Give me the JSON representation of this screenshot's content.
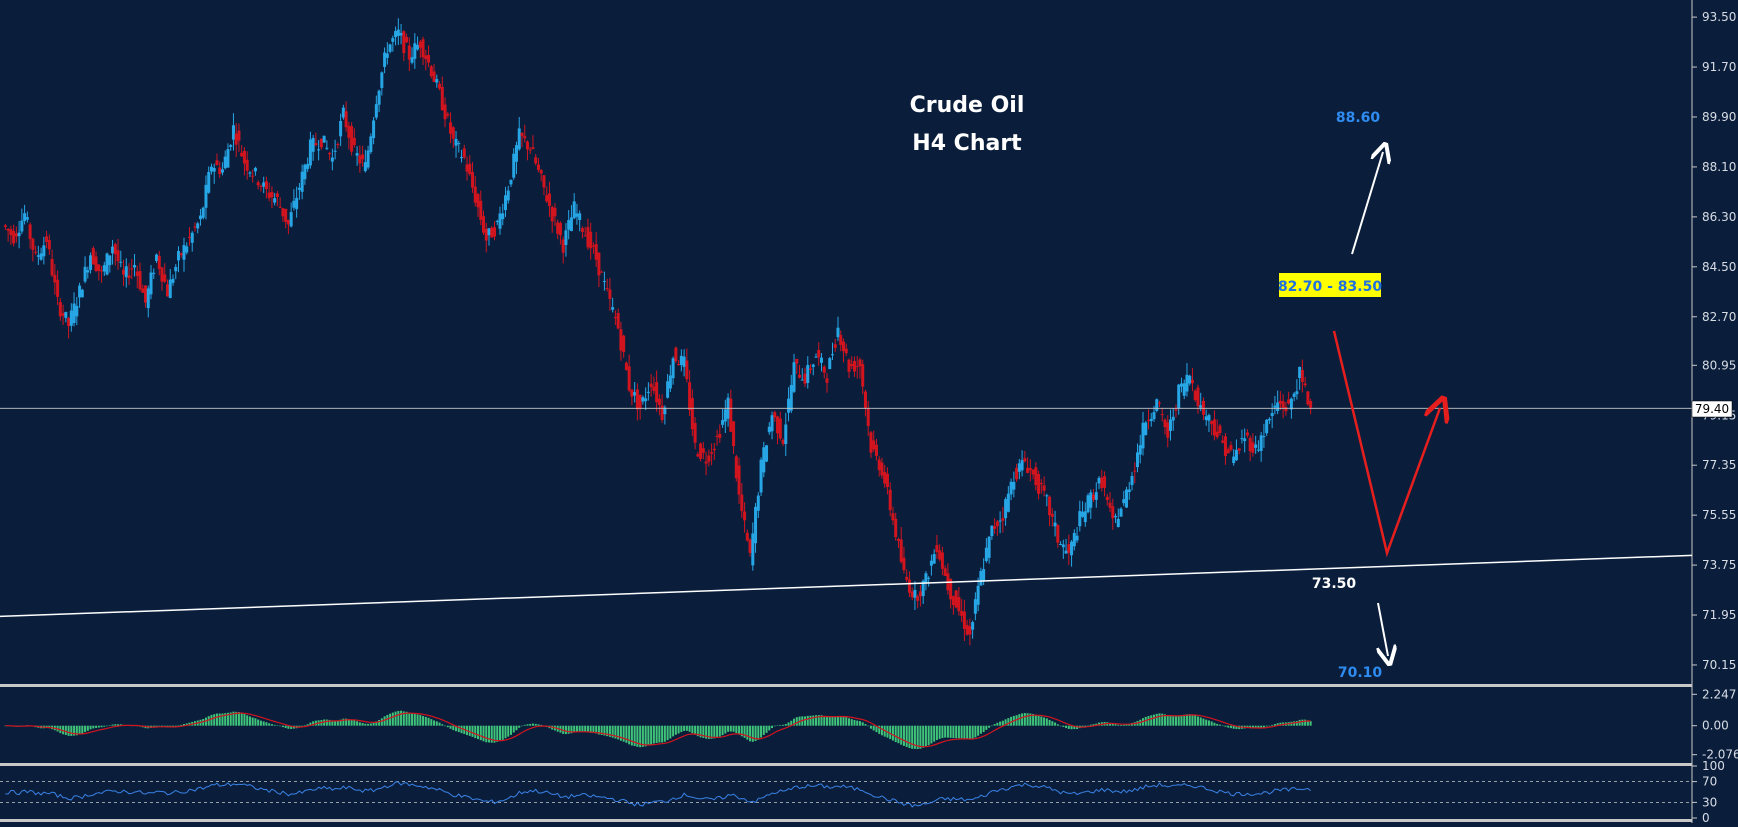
{
  "chart_data": [
    {
      "type": "candlestick",
      "title": "Crude Oil",
      "subtitle": "H4 Chart",
      "ylim": [
        69.5,
        93.9
      ],
      "y_ticks": [
        "93.50",
        "91.70",
        "89.90",
        "88.10",
        "86.30",
        "84.50",
        "82.70",
        "80.95",
        "79.15",
        "77.35",
        "75.55",
        "73.75",
        "71.95",
        "70.15"
      ],
      "current_price": "79.40",
      "price_path": [
        86.0,
        85.6,
        86.4,
        84.8,
        85.5,
        83.2,
        82.4,
        83.6,
        85.0,
        84.2,
        85.3,
        84.1,
        84.6,
        83.2,
        84.9,
        83.6,
        84.8,
        85.5,
        86.2,
        88.2,
        88.0,
        89.5,
        88.3,
        87.8,
        87.2,
        86.9,
        86.0,
        87.4,
        88.8,
        89.1,
        88.4,
        90.0,
        88.6,
        88.1,
        90.6,
        92.4,
        92.9,
        92.1,
        92.6,
        91.6,
        90.4,
        89.0,
        88.4,
        87.0,
        85.5,
        86.0,
        87.4,
        89.2,
        88.8,
        87.6,
        86.4,
        85.3,
        86.6,
        85.7,
        84.8,
        83.5,
        82.3,
        80.2,
        79.4,
        80.4,
        79.2,
        81.3,
        81.0,
        78.0,
        77.6,
        78.3,
        79.6,
        76.2,
        74.0,
        77.3,
        79.2,
        78.3,
        80.9,
        80.5,
        81.3,
        80.6,
        82.3,
        80.9,
        81.0,
        78.0,
        77.2,
        75.4,
        73.4,
        72.6,
        73.2,
        74.5,
        73.0,
        72.1,
        71.2,
        73.4,
        75.0,
        75.6,
        77.0,
        77.5,
        76.8,
        76.0,
        74.7,
        74.1,
        75.4,
        76.2,
        76.8,
        75.2,
        76.0,
        77.4,
        79.0,
        79.6,
        78.4,
        80.0,
        80.6,
        79.4,
        78.9,
        78.1,
        77.6,
        78.4,
        77.9,
        78.8,
        79.6,
        79.4,
        80.6,
        79.4
      ],
      "support_line": {
        "label": "73.50",
        "y_start": 71.9,
        "y_end": 74.1
      },
      "resistance_zone": "82.70 - 83.50",
      "targets": {
        "upside": "88.60",
        "downside": "70.10"
      },
      "colors": {
        "up": "#27a6e6",
        "down": "#d2141e",
        "background": "#0a1e3c",
        "projection": "#e61e1e",
        "arrow": "#ffffff"
      }
    },
    {
      "type": "histogram",
      "name": "MACD",
      "y_ticks": [
        "2.247",
        "0.00",
        "-2.076"
      ],
      "ylim": [
        -2.6,
        2.7
      ],
      "colors": {
        "bars": "#3fc47a",
        "signal": "#d2141e"
      }
    },
    {
      "type": "line",
      "name": "RSI",
      "y_ticks": [
        "100",
        "70",
        "30",
        "0"
      ],
      "levels": [
        70,
        30
      ],
      "colors": {
        "line": "#3a82e6",
        "levels": "#c8c8c8"
      }
    }
  ]
}
